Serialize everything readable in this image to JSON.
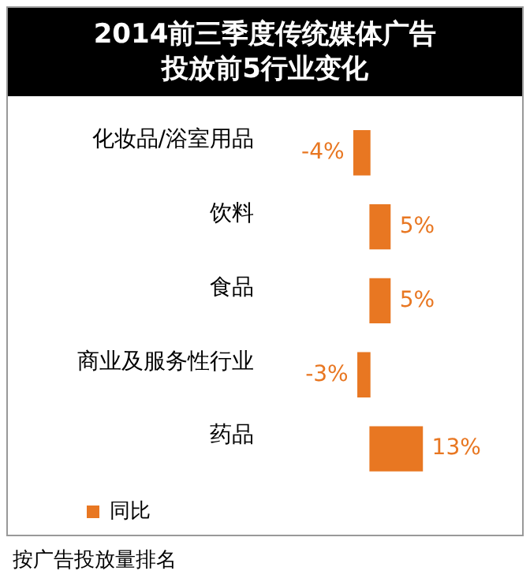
{
  "chart_data": {
    "type": "bar",
    "orientation": "horizontal",
    "title": "2014前三季度传统媒体广告投放前5行业变化",
    "categories": [
      "化妆品/浴室用品",
      "饮料",
      "食品",
      "商业及服务性行业",
      "药品"
    ],
    "series": [
      {
        "name": "同比",
        "color": "#e87722",
        "values": [
          -4,
          5,
          5,
          -3,
          13
        ],
        "value_labels": [
          "-4%",
          "5%",
          "5%",
          "-3%",
          "13%"
        ]
      }
    ],
    "legend": "bottom left",
    "annotations": [
      "按广告投放量排名"
    ]
  }
}
